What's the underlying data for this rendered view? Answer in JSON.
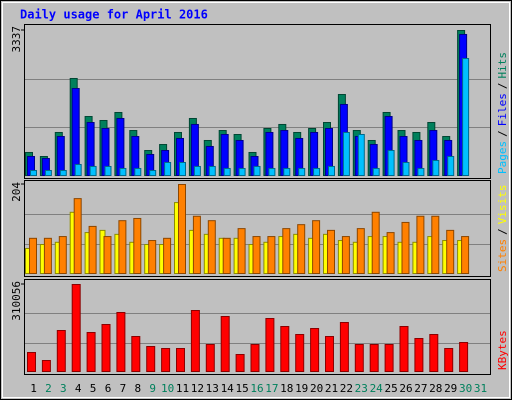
{
  "chart_data": [
    {
      "type": "bar",
      "title": "Daily usage for April 2016",
      "separator": "/",
      "ylim": [
        0,
        3337
      ],
      "yticks": [
        3337
      ],
      "series": [
        {
          "name": "Hits",
          "color": "#00805c",
          "values": [
            549,
            457,
            1006,
            2240,
            1371,
            1280,
            1463,
            1051,
            594,
            731,
            1006,
            1326,
            823,
            1051,
            960,
            549,
            1097,
            1189,
            1006,
            1097,
            1234,
            1874,
            1051,
            823,
            1463,
            1051,
            1006,
            1234,
            914,
            3337,
            null
          ]
        },
        {
          "name": "Files",
          "color": "#0000ff",
          "values": [
            457,
            411,
            914,
            2011,
            1234,
            1097,
            1326,
            914,
            503,
            594,
            869,
            1189,
            686,
            960,
            823,
            457,
            1006,
            1051,
            869,
            1006,
            1097,
            1646,
            914,
            731,
            1371,
            914,
            823,
            1051,
            823,
            3246,
            null
          ]
        },
        {
          "name": "Pages",
          "color": "#00c0ff",
          "values": [
            137,
            137,
            137,
            274,
            229,
            229,
            183,
            183,
            137,
            320,
            320,
            229,
            229,
            183,
            183,
            229,
            183,
            183,
            183,
            183,
            229,
            1006,
            960,
            183,
            594,
            320,
            183,
            366,
            457,
            2697,
            null
          ]
        }
      ]
    },
    {
      "type": "bar",
      "ylim": [
        0,
        204
      ],
      "yticks": [
        204
      ],
      "series": [
        {
          "name": "Visits",
          "color": "#ffff00",
          "values": [
            59,
            68,
            73,
            141,
            95,
            100,
            91,
            73,
            68,
            68,
            163,
            100,
            91,
            82,
            82,
            68,
            73,
            86,
            91,
            82,
            91,
            77,
            73,
            86,
            86,
            73,
            73,
            86,
            77,
            77,
            null
          ]
        },
        {
          "name": "Sites",
          "color": "#ff8000",
          "values": [
            82,
            82,
            86,
            172,
            109,
            86,
            122,
            127,
            77,
            82,
            204,
            132,
            122,
            82,
            104,
            86,
            86,
            104,
            113,
            122,
            100,
            86,
            104,
            141,
            95,
            118,
            132,
            132,
            100,
            86,
            null
          ]
        }
      ]
    },
    {
      "type": "bar",
      "ylim": [
        0,
        310056
      ],
      "yticks": [
        310056
      ],
      "categories": [
        "1",
        "2",
        "3",
        "4",
        "5",
        "6",
        "7",
        "8",
        "9",
        "10",
        "11",
        "12",
        "13",
        "14",
        "15",
        "16",
        "17",
        "18",
        "19",
        "20",
        "21",
        "22",
        "23",
        "24",
        "25",
        "26",
        "27",
        "28",
        "29",
        "30",
        "31"
      ],
      "label_colors": [
        "#000000",
        "#00805c",
        "#00805c",
        "#000000",
        "#000000",
        "#000000",
        "#000000",
        "#000000",
        "#00805c",
        "#00805c",
        "#000000",
        "#000000",
        "#000000",
        "#000000",
        "#000000",
        "#00805c",
        "#00805c",
        "#000000",
        "#000000",
        "#000000",
        "#000000",
        "#000000",
        "#00805c",
        "#00805c",
        "#000000",
        "#000000",
        "#000000",
        "#000000",
        "#000000",
        "#00805c",
        "#00805c"
      ],
      "series": [
        {
          "name": "KBytes",
          "color": "#ff0000",
          "values": [
            70470,
            42280,
            147970,
            310056,
            140920,
            169110,
            211390,
            126830,
            91600,
            84560,
            84560,
            218440,
            98650,
            197300,
            63420,
            98650,
            190250,
            162070,
            133880,
            155020,
            126830,
            176160,
            98650,
            98650,
            98650,
            162070,
            119790,
            133880,
            84560,
            105690,
            null
          ]
        }
      ]
    }
  ]
}
